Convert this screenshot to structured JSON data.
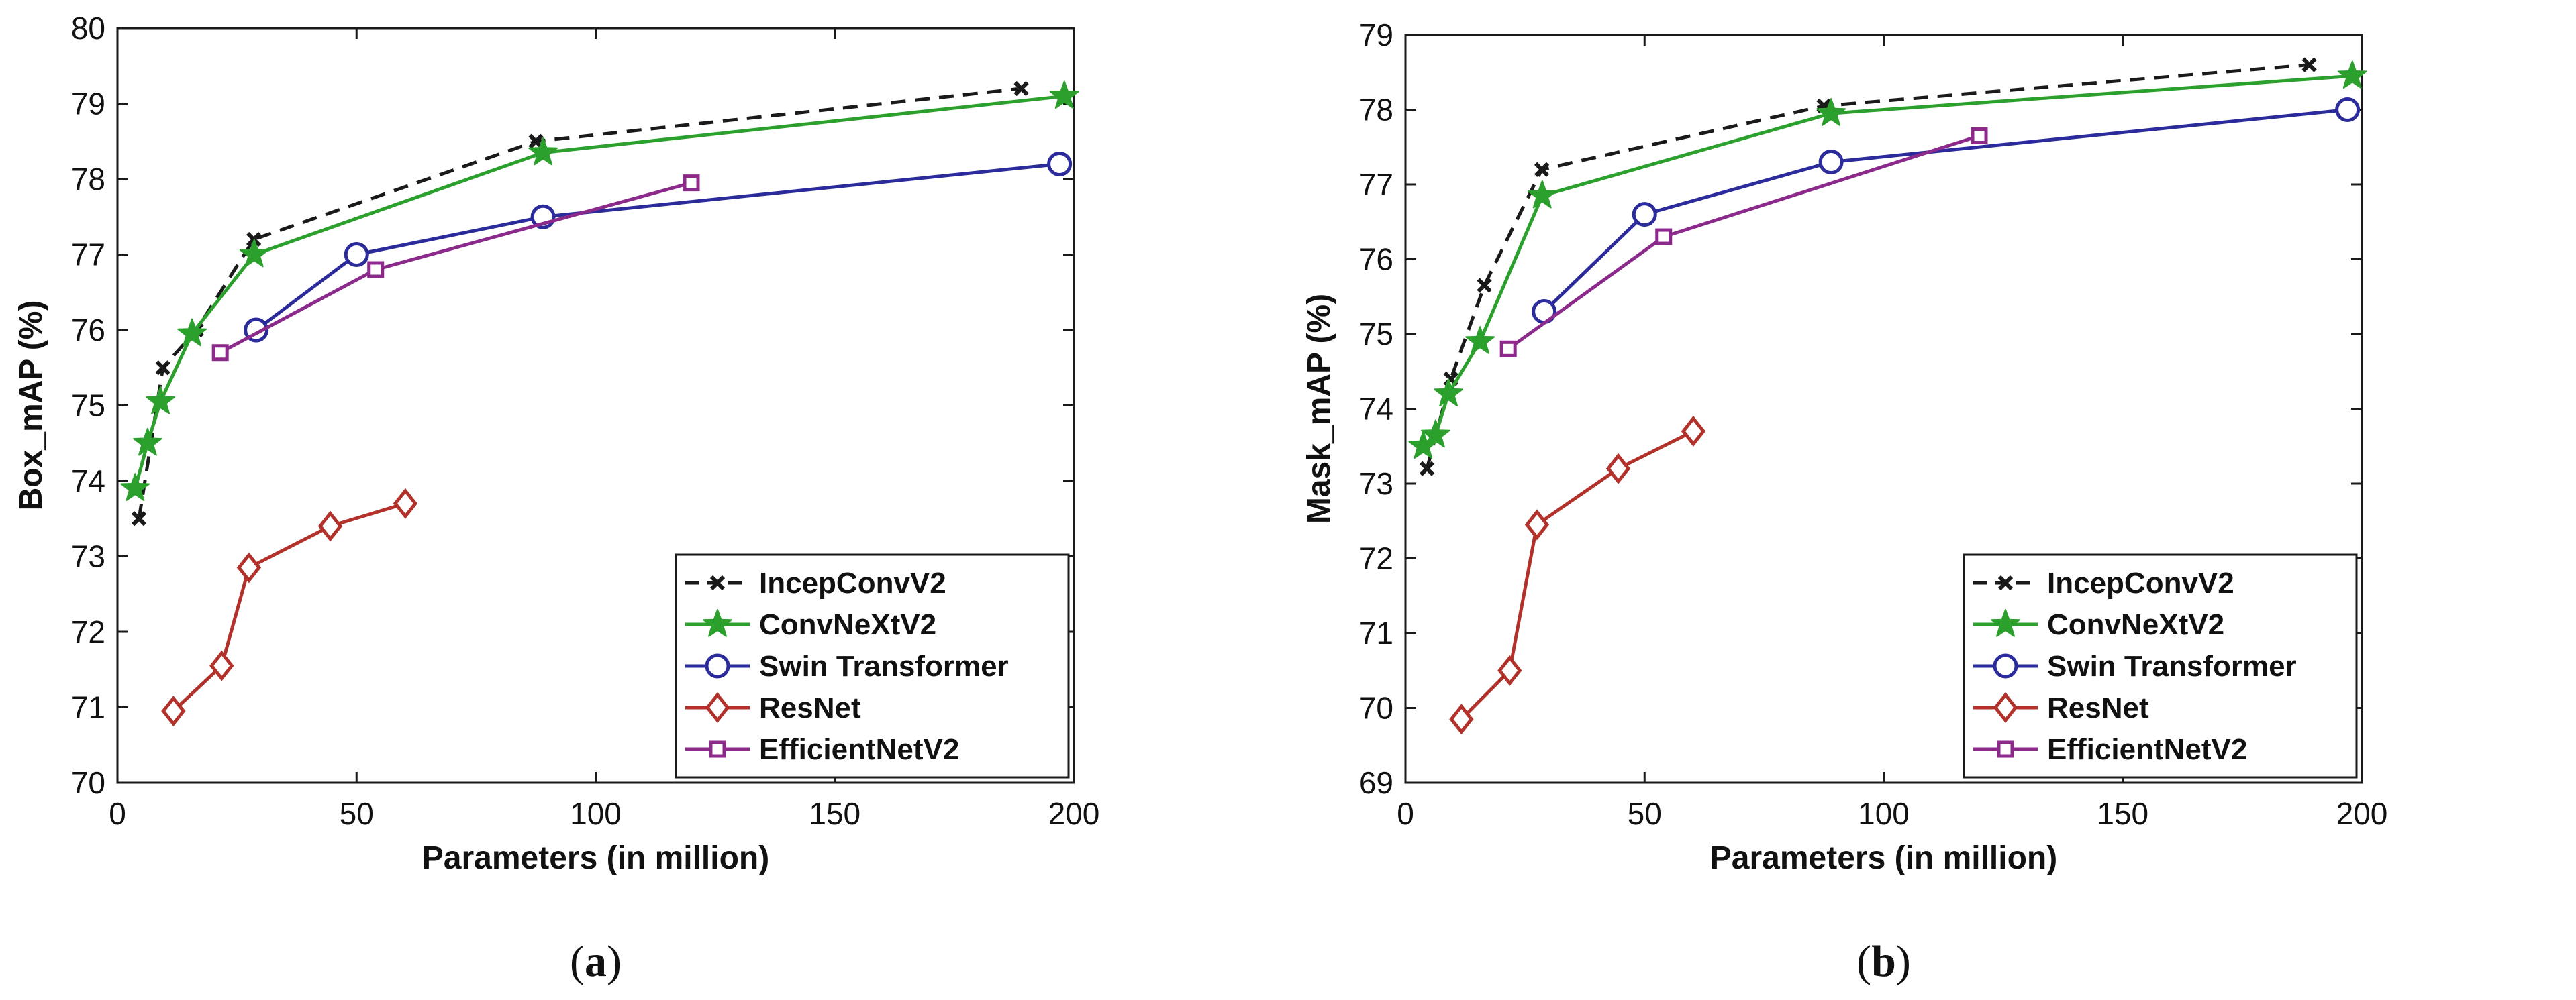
{
  "figure": {
    "panel_labels": [
      "(a)",
      "(b)"
    ]
  },
  "colors": {
    "IncepConvV2": "#1a1a1a",
    "ConvNeXtV2": "#2ca02c",
    "Swin Transformer": "#2b2b9b",
    "ResNet": "#b2322b",
    "EfficientNetV2": "#8b2a8b"
  },
  "chart_data": [
    {
      "id": "a",
      "type": "line",
      "panel_label": "(a)",
      "title": "",
      "xlabel": "Parameters (in million)",
      "ylabel": "Box_mAP (%)",
      "xlim": [
        0,
        200
      ],
      "ylim": [
        70,
        80
      ],
      "xticks": [
        0,
        50,
        100,
        150,
        200
      ],
      "yticks": [
        70,
        71,
        72,
        73,
        74,
        75,
        76,
        77,
        78,
        79,
        80
      ],
      "grid": false,
      "legend_position": "bottom-right",
      "series": [
        {
          "name": "IncepConvV2",
          "marker": "x",
          "dash": "dashed",
          "x": [
            4.5,
            9.5,
            16.5,
            28.5,
            87.5,
            189
          ],
          "y": [
            73.5,
            75.5,
            76.0,
            77.2,
            78.5,
            79.2
          ]
        },
        {
          "name": "ConvNeXtV2",
          "marker": "star",
          "dash": "solid",
          "x": [
            3.7,
            6.3,
            9.0,
            15.6,
            28.6,
            89,
            198
          ],
          "y": [
            73.9,
            74.5,
            75.05,
            75.95,
            77.0,
            78.35,
            79.1
          ]
        },
        {
          "name": "Swin Transformer",
          "marker": "circle",
          "dash": "solid",
          "x": [
            29,
            50,
            89,
            197
          ],
          "y": [
            76.0,
            77.0,
            77.5,
            78.2
          ]
        },
        {
          "name": "ResNet",
          "marker": "diamond",
          "dash": "solid",
          "x": [
            11.7,
            21.8,
            27.5,
            44.5,
            60.2
          ],
          "y": [
            70.95,
            71.55,
            72.85,
            73.4,
            73.7
          ]
        },
        {
          "name": "EfficientNetV2",
          "marker": "square",
          "dash": "solid",
          "x": [
            21.5,
            54,
            120
          ],
          "y": [
            75.7,
            76.8,
            77.95
          ]
        }
      ]
    },
    {
      "id": "b",
      "type": "line",
      "panel_label": "(b)",
      "title": "",
      "xlabel": "Parameters (in million)",
      "ylabel": "Mask_mAP (%)",
      "xlim": [
        0,
        200
      ],
      "ylim": [
        69,
        79
      ],
      "xticks": [
        0,
        50,
        100,
        150,
        200
      ],
      "yticks": [
        69,
        70,
        71,
        72,
        73,
        74,
        75,
        76,
        77,
        78,
        79
      ],
      "grid": false,
      "legend_position": "bottom-right",
      "series": [
        {
          "name": "IncepConvV2",
          "marker": "x",
          "dash": "dashed",
          "x": [
            4.5,
            9.5,
            16.5,
            28.5,
            87.5,
            189
          ],
          "y": [
            73.2,
            74.4,
            75.65,
            77.2,
            78.05,
            78.6
          ]
        },
        {
          "name": "ConvNeXtV2",
          "marker": "star",
          "dash": "solid",
          "x": [
            3.7,
            6.3,
            9.0,
            15.6,
            28.6,
            89,
            198
          ],
          "y": [
            73.5,
            73.65,
            74.2,
            74.9,
            76.85,
            77.95,
            78.45
          ]
        },
        {
          "name": "Swin Transformer",
          "marker": "circle",
          "dash": "solid",
          "x": [
            29,
            50,
            89,
            197
          ],
          "y": [
            75.3,
            76.6,
            77.3,
            78.0
          ]
        },
        {
          "name": "ResNet",
          "marker": "diamond",
          "dash": "solid",
          "x": [
            11.7,
            21.8,
            27.5,
            44.5,
            60.2
          ],
          "y": [
            69.85,
            70.5,
            72.45,
            73.2,
            73.7
          ]
        },
        {
          "name": "EfficientNetV2",
          "marker": "square",
          "dash": "solid",
          "x": [
            21.5,
            54,
            120
          ],
          "y": [
            74.8,
            76.3,
            77.65
          ]
        }
      ]
    }
  ]
}
